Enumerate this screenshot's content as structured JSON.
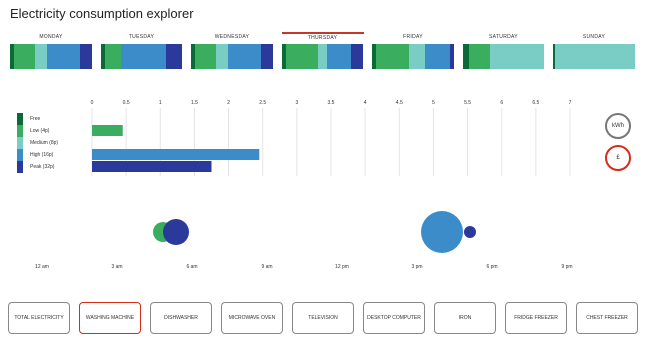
{
  "title": "Electricity consumption explorer",
  "colors": {
    "free": "#0a6b38",
    "low": "#3aad5f",
    "medium": "#79cdc4",
    "high": "#3b8cc9",
    "peak": "#2b3a9a",
    "selected_outline": "#d62c1a"
  },
  "days": [
    {
      "label": "MONDAY",
      "selected": false,
      "segments": [
        [
          "free",
          0.05
        ],
        [
          "low",
          0.25
        ],
        [
          "medium",
          0.15
        ],
        [
          "high",
          0.4
        ],
        [
          "peak",
          0.15
        ]
      ]
    },
    {
      "label": "TUESDAY",
      "selected": false,
      "segments": [
        [
          "free",
          0.05
        ],
        [
          "low",
          0.2
        ],
        [
          "high",
          0.55
        ],
        [
          "peak",
          0.2
        ]
      ]
    },
    {
      "label": "WEDNESDAY",
      "selected": false,
      "segments": [
        [
          "free",
          0.05
        ],
        [
          "low",
          0.25
        ],
        [
          "medium",
          0.15
        ],
        [
          "high",
          0.4
        ],
        [
          "peak",
          0.15
        ]
      ]
    },
    {
      "label": "THURSDAY",
      "selected": true,
      "segments": [
        [
          "free",
          0.05
        ],
        [
          "low",
          0.4
        ],
        [
          "medium",
          0.1
        ],
        [
          "high",
          0.3
        ],
        [
          "peak",
          0.15
        ]
      ]
    },
    {
      "label": "FRIDAY",
      "selected": false,
      "segments": [
        [
          "free",
          0.05
        ],
        [
          "low",
          0.4
        ],
        [
          "medium",
          0.2
        ],
        [
          "high",
          0.3
        ],
        [
          "peak",
          0.05
        ]
      ]
    },
    {
      "label": "SATURDAY",
      "selected": false,
      "segments": [
        [
          "free",
          0.08
        ],
        [
          "low",
          0.25
        ],
        [
          "medium",
          0.67
        ]
      ]
    },
    {
      "label": "SUNDAY",
      "selected": false,
      "segments": [
        [
          "free",
          0.03
        ],
        [
          "medium",
          0.97
        ]
      ]
    }
  ],
  "legend": [
    {
      "key": "free",
      "label": "Free"
    },
    {
      "key": "low",
      "label": "Low (4p)"
    },
    {
      "key": "medium",
      "label": "Medium (8p)"
    },
    {
      "key": "high",
      "label": "High (16p)"
    },
    {
      "key": "peak",
      "label": "Peak (32p)"
    }
  ],
  "chart_data": {
    "type": "bar",
    "categories": [
      "Free",
      "Low (4p)",
      "Medium (8p)",
      "High (16p)",
      "Peak (32p)"
    ],
    "values": [
      0,
      0.45,
      0,
      2.45,
      1.75
    ],
    "ticks": [
      "0",
      "0.5",
      "1",
      "1.5",
      "2",
      "2.5",
      "3",
      "3.5",
      "4",
      "4.5",
      "5",
      "5.5",
      "6",
      "6.5",
      "7"
    ],
    "xlim": [
      0,
      7
    ],
    "grid": true
  },
  "toggles": {
    "kwh": "kWh",
    "cost": "£"
  },
  "timeline": {
    "labels": [
      "12 am",
      "3 am",
      "6 am",
      "9 am",
      "12 pm",
      "3 pm",
      "6 pm",
      "9 pm"
    ],
    "bubbles": [
      {
        "hour": 4.85,
        "tariff": "low",
        "size": 20
      },
      {
        "hour": 5.35,
        "tariff": "peak",
        "size": 26
      },
      {
        "hour": 16.0,
        "tariff": "high",
        "size": 42
      },
      {
        "hour": 17.1,
        "tariff": "peak",
        "size": 12
      }
    ]
  },
  "appliances": [
    {
      "label": "TOTAL ELECTRICITY",
      "selected": false
    },
    {
      "label": "WASHING MACHINE",
      "selected": true
    },
    {
      "label": "DISHWASHER",
      "selected": false
    },
    {
      "label": "MICROWAVE OVEN",
      "selected": false
    },
    {
      "label": "TELEVISION",
      "selected": false
    },
    {
      "label": "DESKTOP COMPUTER",
      "selected": false
    },
    {
      "label": "IRON",
      "selected": false
    },
    {
      "label": "FRIDGE FREEZER",
      "selected": false
    },
    {
      "label": "CHEST FREEZER",
      "selected": false
    }
  ]
}
